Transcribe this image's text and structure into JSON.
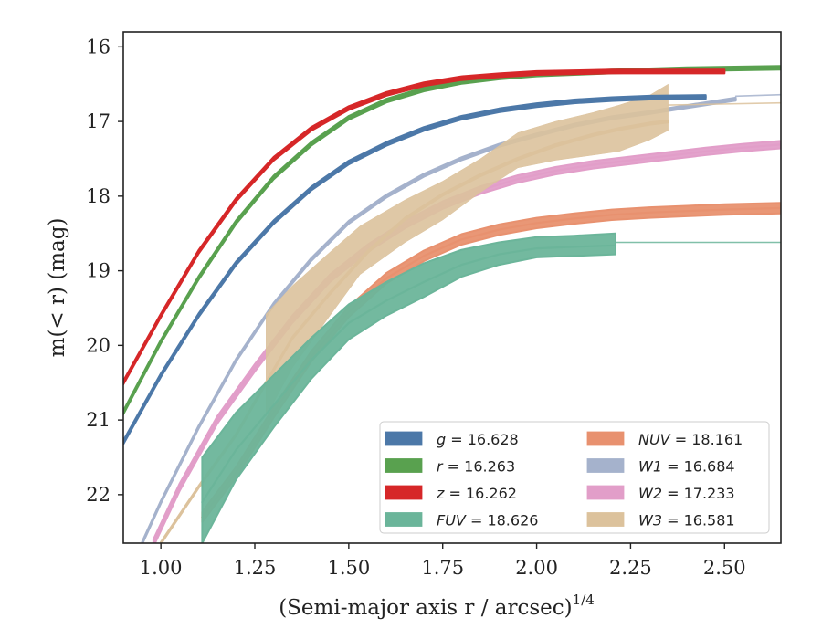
{
  "chart_data": {
    "type": "line",
    "xlabel": "(Semi-major axis r / arcsec)",
    "xlabel_sup": "1/4",
    "ylabel": "m(< r) (mag)",
    "xlim": [
      0.9,
      2.65
    ],
    "ylim": [
      22.65,
      15.8
    ],
    "y_inverted": true,
    "x_ticks": [
      1.0,
      1.25,
      1.5,
      1.75,
      2.0,
      2.25,
      2.5
    ],
    "x_tick_labels": [
      "1.00",
      "1.25",
      "1.50",
      "1.75",
      "2.00",
      "2.25",
      "2.50"
    ],
    "y_ticks": [
      16,
      17,
      18,
      19,
      20,
      21,
      22
    ],
    "y_tick_labels": [
      "16",
      "17",
      "18",
      "19",
      "20",
      "21",
      "22"
    ],
    "grid": false,
    "legend_position": "bottom-right",
    "series": [
      {
        "name": "g",
        "label": "g = 16.628",
        "color": "#4c78a8",
        "x": [
          0.9,
          1.0,
          1.1,
          1.2,
          1.3,
          1.4,
          1.5,
          1.6,
          1.7,
          1.8,
          1.9,
          2.0,
          2.1,
          2.2,
          2.3,
          2.45
        ],
        "y": [
          21.3,
          20.4,
          19.6,
          18.9,
          18.35,
          17.9,
          17.55,
          17.3,
          17.1,
          16.95,
          16.85,
          16.78,
          16.73,
          16.7,
          16.68,
          16.67
        ],
        "band": 0.025
      },
      {
        "name": "r",
        "label": "r = 16.263",
        "color": "#59a14f",
        "x": [
          0.9,
          1.0,
          1.1,
          1.2,
          1.3,
          1.4,
          1.5,
          1.6,
          1.7,
          1.8,
          1.9,
          2.0,
          2.1,
          2.2,
          2.4,
          2.65
        ],
        "y": [
          20.9,
          19.95,
          19.1,
          18.35,
          17.75,
          17.3,
          16.95,
          16.72,
          16.57,
          16.47,
          16.41,
          16.37,
          16.35,
          16.33,
          16.3,
          16.28
        ],
        "band": 0.025
      },
      {
        "name": "z",
        "label": "z = 16.262",
        "color": "#d62728",
        "x": [
          0.9,
          1.0,
          1.1,
          1.2,
          1.3,
          1.4,
          1.5,
          1.6,
          1.7,
          1.8,
          1.9,
          2.0,
          2.1,
          2.2,
          2.35,
          2.5
        ],
        "y": [
          20.5,
          19.6,
          18.75,
          18.05,
          17.5,
          17.1,
          16.82,
          16.63,
          16.5,
          16.42,
          16.38,
          16.35,
          16.34,
          16.33,
          16.33,
          16.33
        ],
        "band": 0.025
      },
      {
        "name": "FUV",
        "label": "FUV = 18.626",
        "color": "#6bb59a",
        "x": [
          1.11,
          1.2,
          1.3,
          1.4,
          1.5,
          1.6,
          1.7,
          1.8,
          1.9,
          2.0,
          2.1,
          2.21
        ],
        "y": [
          22.1,
          21.4,
          20.8,
          20.2,
          19.7,
          19.4,
          19.15,
          18.92,
          18.78,
          18.7,
          18.68,
          18.66
        ],
        "band_lo": [
          21.5,
          20.9,
          20.4,
          19.9,
          19.45,
          19.15,
          18.9,
          18.72,
          18.62,
          18.55,
          18.53,
          18.5
        ],
        "band_hi": [
          22.65,
          21.8,
          21.1,
          20.45,
          19.92,
          19.6,
          19.35,
          19.08,
          18.92,
          18.82,
          18.8,
          18.78
        ]
      },
      {
        "name": "FUV extrapolation",
        "color": "#6bb59a",
        "thin": true,
        "x": [
          2.21,
          2.65
        ],
        "y": [
          18.62,
          18.62
        ]
      },
      {
        "name": "NUV",
        "label": "NUV = 18.161",
        "color": "#e8916f",
        "x": [
          1.11,
          1.2,
          1.3,
          1.4,
          1.5,
          1.6,
          1.7,
          1.8,
          1.9,
          2.0,
          2.1,
          2.2,
          2.3,
          2.4,
          2.5,
          2.65
        ],
        "y": [
          22.3,
          21.7,
          20.9,
          20.15,
          19.55,
          19.1,
          18.8,
          18.58,
          18.45,
          18.36,
          18.3,
          18.25,
          18.22,
          18.2,
          18.18,
          18.16
        ],
        "band": 0.07
      },
      {
        "name": "W1",
        "label": "W1 = 16.684",
        "color": "#a5b2cc",
        "x": [
          0.95,
          1.0,
          1.1,
          1.2,
          1.3,
          1.4,
          1.5,
          1.6,
          1.7,
          1.8,
          1.9,
          2.0,
          2.1,
          2.2,
          2.3,
          2.4,
          2.53
        ],
        "y": [
          22.65,
          22.1,
          21.1,
          20.2,
          19.45,
          18.85,
          18.35,
          18.0,
          17.72,
          17.5,
          17.32,
          17.18,
          17.05,
          16.95,
          16.88,
          16.8,
          16.7
        ],
        "band": 0.02
      },
      {
        "name": "W1 extrapolation",
        "color": "#a5b2cc",
        "thin": true,
        "x": [
          2.53,
          2.65
        ],
        "y": [
          16.66,
          16.64
        ]
      },
      {
        "name": "W2",
        "label": "W2 = 17.233",
        "color": "#e29ec9",
        "x": [
          0.98,
          1.05,
          1.15,
          1.25,
          1.35,
          1.45,
          1.55,
          1.65,
          1.75,
          1.85,
          1.95,
          2.05,
          2.15,
          2.25,
          2.35,
          2.45,
          2.55,
          2.65
        ],
        "y": [
          22.65,
          21.9,
          21.0,
          20.3,
          19.65,
          19.1,
          18.7,
          18.38,
          18.12,
          17.92,
          17.77,
          17.66,
          17.58,
          17.52,
          17.46,
          17.4,
          17.35,
          17.31
        ],
        "band": 0.05
      },
      {
        "name": "W3",
        "label": "W3 = 16.581",
        "color": "#dcc29c",
        "x": [
          1.0,
          1.1,
          1.2,
          1.28,
          1.35,
          1.45,
          1.55,
          1.65,
          1.75,
          1.85,
          1.95,
          2.05,
          2.15,
          2.22,
          2.3,
          2.35
        ],
        "y": [
          22.65,
          21.9,
          21.2,
          20.5,
          19.9,
          19.3,
          18.75,
          18.3,
          17.98,
          17.72,
          17.5,
          17.32,
          17.18,
          17.1,
          17.03,
          17.0
        ],
        "band": 0.015
      },
      {
        "name": "W3 uncertainty",
        "color": "#dcc29c",
        "region": true,
        "x": [
          1.28,
          1.35,
          1.45,
          1.53,
          1.65,
          1.75,
          1.85,
          1.95,
          2.05,
          2.15,
          2.22,
          2.3,
          2.35
        ],
        "band_lo": [
          19.58,
          19.2,
          18.75,
          18.4,
          18.05,
          17.8,
          17.5,
          17.15,
          17.0,
          16.88,
          16.78,
          16.65,
          16.5
        ],
        "band_hi": [
          20.95,
          20.3,
          19.6,
          19.05,
          18.62,
          18.32,
          17.95,
          17.62,
          17.52,
          17.45,
          17.4,
          17.25,
          17.12
        ]
      },
      {
        "name": "W3 extrapolation",
        "color": "#dcc29c",
        "thin": true,
        "x": [
          2.35,
          2.65
        ],
        "y": [
          16.78,
          16.75
        ]
      }
    ],
    "legend": [
      {
        "label": "g = 16.628",
        "var": "g",
        "rest": " = 16.628",
        "color": "#4c78a8"
      },
      {
        "label": "r = 16.263",
        "var": "r",
        "rest": " = 16.263",
        "color": "#59a14f"
      },
      {
        "label": "z = 16.262",
        "var": "z",
        "rest": " = 16.262",
        "color": "#d62728"
      },
      {
        "label": "FUV = 18.626",
        "var": "FUV",
        "rest": " = 18.626",
        "color": "#6bb59a"
      },
      {
        "label": "NUV = 18.161",
        "var": "NUV",
        "rest": " = 18.161",
        "color": "#e8916f"
      },
      {
        "label": "W1 = 16.684",
        "var": "W1",
        "rest": " = 16.684",
        "color": "#a5b2cc"
      },
      {
        "label": "W2 = 17.233",
        "var": "W2",
        "rest": " = 17.233",
        "color": "#e29ec9"
      },
      {
        "label": "W3 = 16.581",
        "var": "W3",
        "rest": " = 16.581",
        "color": "#dcc29c"
      }
    ]
  }
}
